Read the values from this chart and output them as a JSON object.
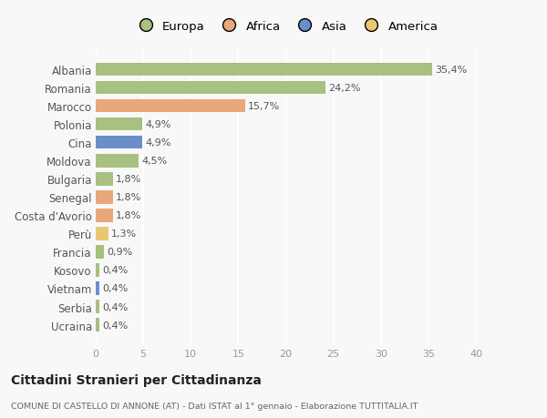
{
  "countries": [
    "Albania",
    "Romania",
    "Marocco",
    "Polonia",
    "Cina",
    "Moldova",
    "Bulgaria",
    "Senegal",
    "Costa d'Avorio",
    "Perù",
    "Francia",
    "Kosovo",
    "Vietnam",
    "Serbia",
    "Ucraina"
  ],
  "values": [
    35.4,
    24.2,
    15.7,
    4.9,
    4.9,
    4.5,
    1.8,
    1.8,
    1.8,
    1.3,
    0.9,
    0.4,
    0.4,
    0.4,
    0.4
  ],
  "labels": [
    "35,4%",
    "24,2%",
    "15,7%",
    "4,9%",
    "4,9%",
    "4,5%",
    "1,8%",
    "1,8%",
    "1,8%",
    "1,3%",
    "0,9%",
    "0,4%",
    "0,4%",
    "0,4%",
    "0,4%"
  ],
  "colors": [
    "#a8c080",
    "#a8c080",
    "#e8a87c",
    "#a8c080",
    "#6a8fc8",
    "#a8c080",
    "#a8c080",
    "#e8a87c",
    "#e8a87c",
    "#e8c870",
    "#a8c080",
    "#a8c080",
    "#6a8fc8",
    "#a8c080",
    "#a8c080"
  ],
  "legend_labels": [
    "Europa",
    "Africa",
    "Asia",
    "America"
  ],
  "legend_colors": [
    "#a8c080",
    "#e8a87c",
    "#6a8fc8",
    "#e8c870"
  ],
  "title1": "Cittadini Stranieri per Cittadinanza",
  "title2": "COMUNE DI CASTELLO DI ANNONE (AT) - Dati ISTAT al 1° gennaio - Elaborazione TUTTITALIA.IT",
  "xlim": [
    0,
    40
  ],
  "xticks": [
    0,
    5,
    10,
    15,
    20,
    25,
    30,
    35,
    40
  ],
  "background_color": "#f8f8f8",
  "grid_color": "#ffffff"
}
